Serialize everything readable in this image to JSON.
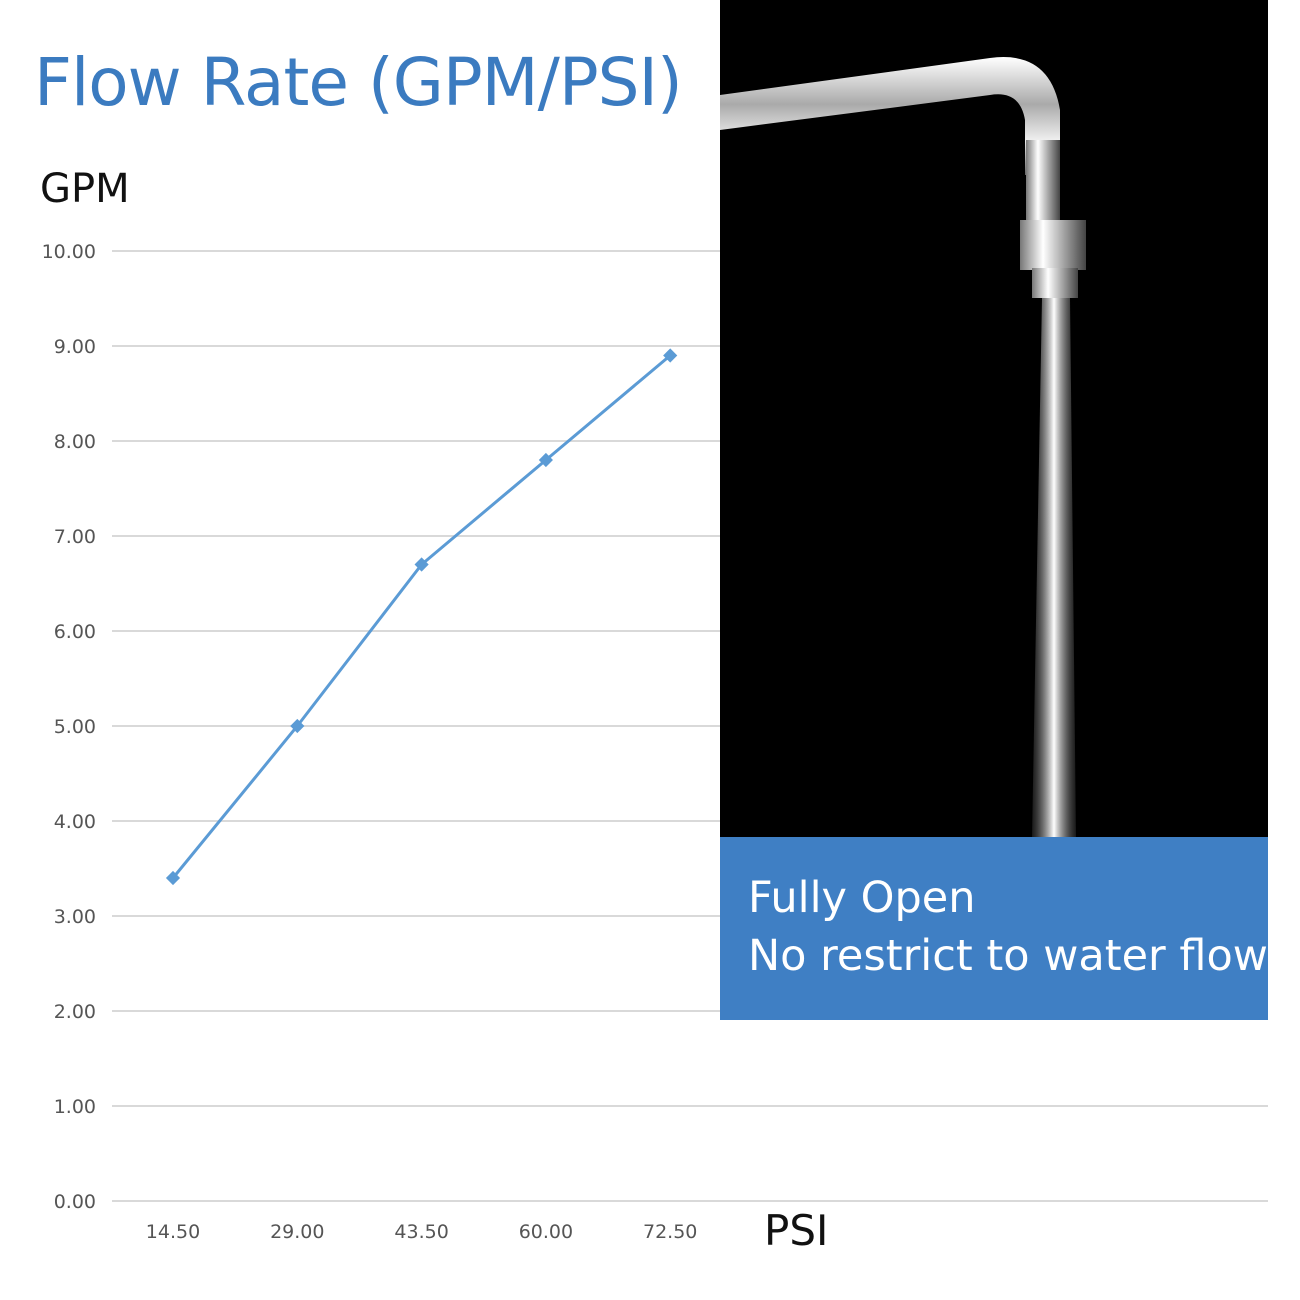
{
  "title": "Flow Rate (GPM/PSI)",
  "caption": {
    "line1": "Fully Open",
    "line2": "No restrict to water flow"
  },
  "colors": {
    "title": "#3b7bc0",
    "series": "#5b9bd5",
    "caption_bg": "#3f7fc4",
    "grid": "#d9d9d9"
  },
  "chart_data": {
    "type": "line",
    "title": "Flow Rate (GPM/PSI)",
    "xlabel": "PSI",
    "ylabel": "GPM",
    "categories": [
      "14.50",
      "29.00",
      "43.50",
      "60.00",
      "72.50"
    ],
    "values": [
      3.4,
      5.0,
      6.7,
      7.8,
      8.9
    ],
    "ylim": [
      0,
      10
    ],
    "yticks": [
      "0.00",
      "1.00",
      "2.00",
      "3.00",
      "4.00",
      "5.00",
      "6.00",
      "7.00",
      "8.00",
      "9.00",
      "10.00"
    ],
    "grid": true,
    "marker": "diamond",
    "legend": "none"
  }
}
